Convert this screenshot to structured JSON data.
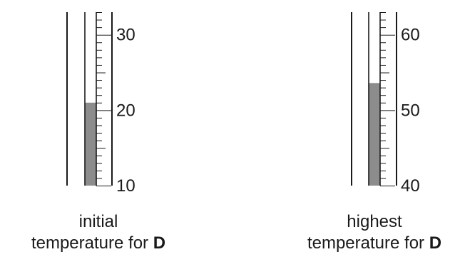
{
  "thermometers": [
    {
      "id": "initial",
      "scale_min": 10,
      "scale_max": 33,
      "major_labels": [
        "10",
        "20",
        "30"
      ],
      "reading": 21,
      "caption_line1": "initial",
      "caption_line2_prefix": "temperature for",
      "caption_line2_bold": "D"
    },
    {
      "id": "highest",
      "scale_min": 40,
      "scale_max": 63,
      "major_labels": [
        "40",
        "50",
        "60"
      ],
      "reading": 53.6,
      "caption_line1": "highest",
      "caption_line2_prefix": "temperature for",
      "caption_line2_bold": "D"
    }
  ],
  "colors": {
    "fluid": "#8c8c8c",
    "line": "#1a1a1a",
    "text": "#1a1a1a"
  }
}
